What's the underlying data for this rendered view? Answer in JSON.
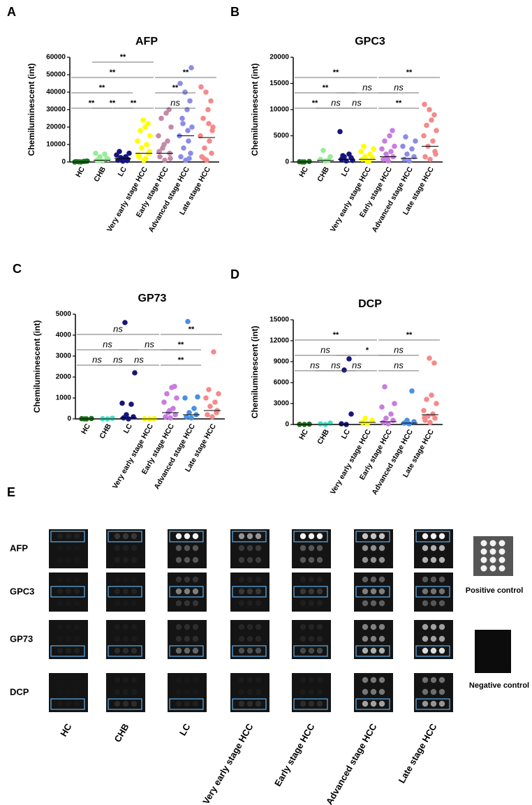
{
  "chart_data": [
    {
      "type": "dotplot",
      "panel": "A",
      "title": "AFP",
      "y_label": "Chemiluminescent (int)",
      "categories": [
        "HC",
        "CHB",
        "LC",
        "Very early stage HCC",
        "Early stage HCC",
        "Advanced stage HCC",
        "Late stage HCC"
      ],
      "colors": [
        "#1a6e1a",
        "#98ec98",
        "#16167a",
        "#ffff00",
        "#c48aa8",
        "#8c8ce8",
        "#f48a8a"
      ],
      "ylim": [
        0,
        60000
      ],
      "yticks": [
        0,
        10000,
        20000,
        30000,
        40000,
        50000,
        60000
      ],
      "points": [
        [
          0,
          200,
          400,
          100,
          300,
          0,
          500
        ],
        [
          500,
          1000,
          2000,
          3000,
          4500,
          5000,
          1500,
          800
        ],
        [
          500,
          1000,
          1500,
          2500,
          3000,
          4000,
          5000,
          6000,
          1200,
          800
        ],
        [
          1000,
          3000,
          5000,
          8000,
          10000,
          12000,
          15000,
          18000,
          20000,
          22000,
          24000,
          4000,
          6000,
          2000
        ],
        [
          1000,
          3000,
          5000,
          8000,
          12000,
          15000,
          20000,
          25000,
          28000,
          30000,
          10000,
          6000,
          2000
        ],
        [
          1000,
          3000,
          5000,
          8000,
          12000,
          15000,
          20000,
          25000,
          30000,
          35000,
          40000,
          45000,
          54000,
          18000,
          22000,
          2000
        ],
        [
          1000,
          3000,
          5000,
          8000,
          12000,
          15000,
          20000,
          25000,
          30000,
          35000,
          40000,
          43000,
          18000,
          22000,
          2000
        ]
      ],
      "medians": [
        0,
        1000,
        2000,
        5000,
        5000,
        15000,
        14000
      ],
      "brackets": [
        {
          "from": 0,
          "to": 1,
          "label": "**"
        },
        {
          "from": 1,
          "to": 2,
          "label": "**"
        },
        {
          "from": 2,
          "to": 3,
          "label": "**"
        },
        {
          "from": 0,
          "to": 2,
          "label": "**"
        },
        {
          "from": 4,
          "to": 5,
          "label": "ns"
        },
        {
          "from": 0,
          "to": 3,
          "label": "**"
        },
        {
          "from": 4,
          "to": 5,
          "label": "**"
        },
        {
          "from": 1,
          "to": 3,
          "label": "**"
        },
        {
          "from": 4,
          "to": 6,
          "label": "**"
        }
      ]
    },
    {
      "type": "dotplot",
      "panel": "B",
      "title": "GPC3",
      "y_label": "Chemiluminescent (int)",
      "categories": [
        "HC",
        "CHB",
        "LC",
        "Very early stage HCC",
        "Early stage HCC",
        "Advanced stage HCC",
        "Late stage HCC"
      ],
      "colors": [
        "#1a6e1a",
        "#98ec98",
        "#16167a",
        "#ffff00",
        "#c77de0",
        "#8c8ce8",
        "#f48a8a"
      ],
      "ylim": [
        0,
        20000
      ],
      "yticks": [
        0,
        5000,
        10000,
        15000,
        20000
      ],
      "points": [
        [
          0,
          50,
          100,
          0
        ],
        [
          200,
          500,
          1000,
          2200,
          300
        ],
        [
          200,
          500,
          800,
          1000,
          1500,
          5800,
          300,
          1200
        ],
        [
          200,
          500,
          800,
          1000,
          1500,
          2000,
          2500,
          3000,
          100
        ],
        [
          200,
          500,
          1000,
          1500,
          2000,
          2500,
          3000,
          4000,
          5000,
          6000,
          800
        ],
        [
          200,
          500,
          1000,
          1500,
          2500,
          3000,
          4000,
          4800
        ],
        [
          500,
          1000,
          2000,
          3000,
          4000,
          5000,
          6000,
          7000,
          8000,
          9000,
          10000,
          11000,
          1500
        ]
      ],
      "medians": [
        0,
        300,
        500,
        500,
        1000,
        700,
        3000
      ],
      "brackets": [
        {
          "from": 0,
          "to": 1,
          "label": "**"
        },
        {
          "from": 1,
          "to": 2,
          "label": "ns"
        },
        {
          "from": 2,
          "to": 3,
          "label": "ns"
        },
        {
          "from": 0,
          "to": 2,
          "label": "**"
        },
        {
          "from": 4,
          "to": 5,
          "label": "**"
        },
        {
          "from": 0,
          "to": 3,
          "label": "**"
        },
        {
          "from": 4,
          "to": 5,
          "label": "ns"
        },
        {
          "from": 2,
          "to": 4,
          "label": "ns"
        },
        {
          "from": 4,
          "to": 6,
          "label": "**"
        }
      ]
    },
    {
      "type": "dotplot",
      "panel": "C",
      "title": "GP73",
      "y_label": "Chemiluminescent (int)",
      "categories": [
        "HC",
        "CHB",
        "LC",
        "Very early stage HCC",
        "Early stage HCC",
        "Advanced stage HCC",
        "Late stage HCC"
      ],
      "colors": [
        "#1a6e1a",
        "#40e0c0",
        "#16167a",
        "#ffff00",
        "#c77de0",
        "#4a90e2",
        "#f48a8a"
      ],
      "ylim": [
        0,
        5000
      ],
      "yticks": [
        0,
        1000,
        2000,
        3000,
        4000,
        5000
      ],
      "points": [
        [
          0,
          10,
          20,
          0
        ],
        [
          0,
          10,
          30
        ],
        [
          0,
          50,
          100,
          200,
          700,
          750,
          2200,
          4600
        ],
        [
          0,
          10,
          20
        ],
        [
          50,
          100,
          200,
          300,
          500,
          800,
          1000,
          1200,
          1500,
          1550,
          400
        ],
        [
          50,
          100,
          200,
          300,
          500,
          1000,
          1050,
          4650
        ],
        [
          100,
          200,
          400,
          600,
          800,
          1000,
          1200,
          1400,
          3200,
          300
        ]
      ],
      "medians": [
        0,
        0,
        50,
        0,
        300,
        200,
        400
      ],
      "brackets": [
        {
          "from": 0,
          "to": 1,
          "label": "ns"
        },
        {
          "from": 1,
          "to": 2,
          "label": "ns"
        },
        {
          "from": 2,
          "to": 3,
          "label": "ns"
        },
        {
          "from": 0,
          "to": 2,
          "label": "ns"
        },
        {
          "from": 4,
          "to": 5,
          "label": "**"
        },
        {
          "from": 0,
          "to": 3,
          "label": "ns"
        },
        {
          "from": 4,
          "to": 5,
          "label": "**"
        },
        {
          "from": 2,
          "to": 4,
          "label": "ns"
        },
        {
          "from": 4,
          "to": 6,
          "label": "**"
        }
      ]
    },
    {
      "type": "dotplot",
      "panel": "D",
      "title": "DCP",
      "y_label": "Chemiluminescent (int)",
      "categories": [
        "HC",
        "CHB",
        "LC",
        "Very early stage HCC",
        "Early stage HCC",
        "Advanced stage HCC",
        "Late stage HCC"
      ],
      "colors": [
        "#1a6e1a",
        "#40e0c0",
        "#16167a",
        "#ffff00",
        "#c77de0",
        "#4a90e2",
        "#f48a8a"
      ],
      "ylim": [
        0,
        15000
      ],
      "yticks": [
        0,
        3000,
        6000,
        9000,
        12000,
        15000
      ],
      "points": [
        [
          0,
          20,
          50
        ],
        [
          0,
          100,
          200
        ],
        [
          0,
          100,
          1500,
          7800,
          9400
        ],
        [
          100,
          300,
          600,
          900
        ],
        [
          100,
          300,
          600,
          900,
          1500,
          2500,
          3000,
          5400
        ],
        [
          100,
          200,
          400,
          600,
          4800
        ],
        [
          300,
          600,
          900,
          1200,
          1500,
          2000,
          3000,
          3600,
          4200,
          8800,
          9500,
          1000
        ]
      ],
      "medians": [
        0,
        0,
        0,
        300,
        400,
        200,
        1400
      ],
      "brackets": [
        {
          "from": 0,
          "to": 1,
          "label": "ns"
        },
        {
          "from": 1,
          "to": 2,
          "label": "ns"
        },
        {
          "from": 2,
          "to": 3,
          "label": "ns"
        },
        {
          "from": 0,
          "to": 2,
          "label": "ns"
        },
        {
          "from": 4,
          "to": 5,
          "label": "ns"
        },
        {
          "from": 0,
          "to": 3,
          "label": "**"
        },
        {
          "from": 4,
          "to": 5,
          "label": "ns"
        },
        {
          "from": 2,
          "to": 4,
          "label": "*"
        },
        {
          "from": 4,
          "to": 6,
          "label": "**"
        }
      ]
    }
  ],
  "panel_e": {
    "panel": "E",
    "rows": [
      "AFP",
      "GPC3",
      "GP73",
      "DCP"
    ],
    "columns": [
      "HC",
      "CHB",
      "LC",
      "Very early stage HCC",
      "Early stage HCC",
      "Advanced stage HCC",
      "Late stage HCC"
    ],
    "positive_label": "Positive control",
    "negative_label": "Negative control"
  }
}
